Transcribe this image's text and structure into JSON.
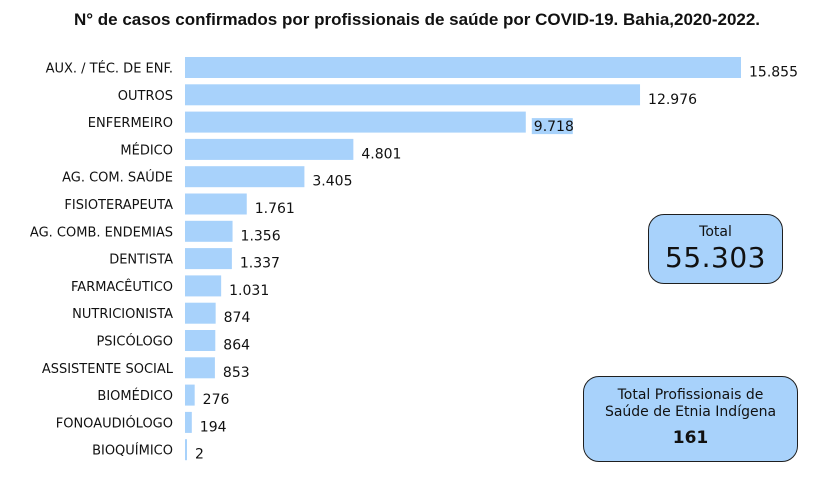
{
  "chart_data": {
    "type": "bar",
    "orientation": "horizontal",
    "title": "N° de casos confirmados por profissionais de saúde por COVID-19. Bahia,2020-2022.",
    "categories": [
      "AUX. / TÉC. DE ENF.",
      "OUTROS",
      "ENFERMEIRO",
      "MÉDICO",
      "AG. COM. SAÚDE",
      "FISIOTERAPEUTA",
      "AG. COMB. ENDEMIAS",
      "DENTISTA",
      "FARMACÊUTICO",
      "NUTRICIONISTA",
      "PSICÓLOGO",
      "ASSISTENTE SOCIAL",
      "BIOMÉDICO",
      "FONOAUDIÓLOGO",
      "BIOQUÍMICO"
    ],
    "values": [
      15855,
      12976,
      9718,
      4801,
      3405,
      1761,
      1356,
      1337,
      1031,
      874,
      864,
      853,
      276,
      194,
      2
    ],
    "value_labels": [
      "15.855",
      "12.976",
      "9.718",
      "4.801",
      "3.405",
      "1.761",
      "1.356",
      "1.337",
      "1.031",
      "874",
      "864",
      "853",
      "276",
      "194",
      "2"
    ],
    "highlighted_label": "9.718",
    "bar_color": "#a8d2fb",
    "highlight_color": "#a8d2fb",
    "xlim": [
      0,
      15855
    ],
    "grid": false,
    "legend": "none"
  },
  "summary": {
    "total_label": "Total",
    "total_value": "55.303",
    "indigenous_label_line1": "Total Profissionais de",
    "indigenous_label_line2": "Saúde de Etnia Indígena",
    "indigenous_value": "161"
  }
}
